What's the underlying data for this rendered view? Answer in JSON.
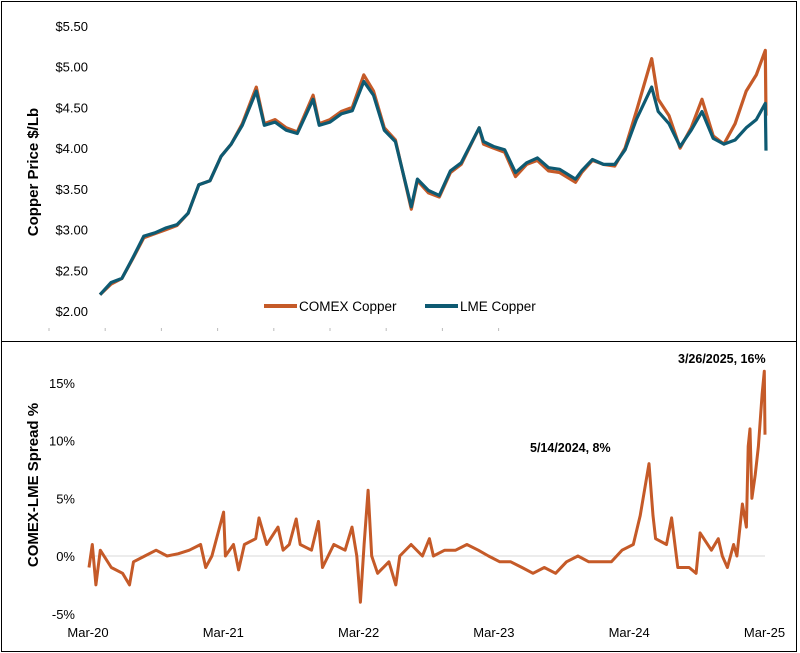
{
  "chart_data": [
    {
      "type": "line",
      "ylabel": "Copper Price $/Lb",
      "ylim": [
        2.0,
        5.5
      ],
      "yticks": [
        "$2.00",
        "$2.50",
        "$3.00",
        "$3.50",
        "$4.00",
        "$4.50",
        "$5.00",
        "$5.50"
      ],
      "ytick_values": [
        2.0,
        2.5,
        3.0,
        3.5,
        4.0,
        4.5,
        5.0,
        5.5
      ],
      "legend_position": "bottom-center",
      "x": [
        "2020-03-01",
        "2020-04-01",
        "2020-05-01",
        "2020-06-01",
        "2020-07-01",
        "2020-08-01",
        "2020-09-01",
        "2020-10-01",
        "2020-11-01",
        "2020-12-01",
        "2021-01-01",
        "2021-02-01",
        "2021-03-01",
        "2021-04-01",
        "2021-05-10",
        "2021-06-01",
        "2021-07-01",
        "2021-08-01",
        "2021-09-01",
        "2021-10-15",
        "2021-11-01",
        "2021-12-01",
        "2022-01-01",
        "2022-02-01",
        "2022-03-05",
        "2022-04-01",
        "2022-05-01",
        "2022-06-01",
        "2022-07-15",
        "2022-08-01",
        "2022-09-01",
        "2022-10-01",
        "2022-11-01",
        "2022-12-01",
        "2023-01-20",
        "2023-02-01",
        "2023-03-01",
        "2023-04-01",
        "2023-05-01",
        "2023-06-01",
        "2023-07-01",
        "2023-08-01",
        "2023-09-01",
        "2023-10-15",
        "2023-11-01",
        "2023-12-01",
        "2024-01-01",
        "2024-02-01",
        "2024-03-01",
        "2024-04-01",
        "2024-05-14",
        "2024-06-01",
        "2024-07-01",
        "2024-08-01",
        "2024-09-01",
        "2024-10-01",
        "2024-11-01",
        "2024-12-01",
        "2025-01-01",
        "2025-02-01",
        "2025-03-01",
        "2025-03-26",
        "2025-03-28"
      ],
      "series": [
        {
          "name": "COMEX Copper",
          "color": "#C55A28",
          "values": [
            2.2,
            2.33,
            2.4,
            2.65,
            2.9,
            2.95,
            3.0,
            3.05,
            3.2,
            3.55,
            3.6,
            3.9,
            4.05,
            4.3,
            4.75,
            4.3,
            4.35,
            4.25,
            4.2,
            4.65,
            4.3,
            4.35,
            4.45,
            4.5,
            4.9,
            4.7,
            4.25,
            4.1,
            3.25,
            3.6,
            3.45,
            3.4,
            3.7,
            3.8,
            4.25,
            4.05,
            4.0,
            3.95,
            3.65,
            3.8,
            3.85,
            3.72,
            3.7,
            3.58,
            3.7,
            3.85,
            3.8,
            3.78,
            4.0,
            4.45,
            5.1,
            4.6,
            4.4,
            4.0,
            4.25,
            4.6,
            4.15,
            4.05,
            4.3,
            4.7,
            4.9,
            5.2,
            4.4
          ]
        },
        {
          "name": "LME Copper",
          "color": "#0E5A72",
          "values": [
            2.2,
            2.35,
            2.4,
            2.66,
            2.92,
            2.96,
            3.02,
            3.06,
            3.2,
            3.55,
            3.6,
            3.9,
            4.05,
            4.28,
            4.7,
            4.28,
            4.32,
            4.22,
            4.18,
            4.6,
            4.28,
            4.32,
            4.42,
            4.46,
            4.82,
            4.65,
            4.22,
            4.08,
            3.28,
            3.62,
            3.48,
            3.42,
            3.72,
            3.82,
            4.25,
            4.08,
            4.02,
            3.98,
            3.7,
            3.82,
            3.88,
            3.76,
            3.74,
            3.62,
            3.72,
            3.86,
            3.8,
            3.8,
            3.98,
            4.35,
            4.75,
            4.45,
            4.3,
            4.02,
            4.22,
            4.45,
            4.12,
            4.05,
            4.1,
            4.25,
            4.35,
            4.55,
            3.97
          ]
        }
      ]
    },
    {
      "type": "line",
      "ylabel": "COMEX-LME Spread %",
      "ylim": [
        -5,
        16
      ],
      "yticks": [
        "-5%",
        "0%",
        "5%",
        "10%",
        "15%"
      ],
      "ytick_values": [
        -5,
        0,
        5,
        10,
        15
      ],
      "xticks": [
        "Mar-20",
        "Mar-21",
        "Mar-22",
        "Mar-23",
        "Mar-24",
        "Mar-25"
      ],
      "annotations": [
        {
          "text": "5/14/2024, 8%",
          "x": "2024-05-14",
          "y": 8
        },
        {
          "text": "3/26/2025, 16%",
          "x": "2025-03-26",
          "y": 16
        }
      ],
      "series": [
        {
          "color": "#C55A28",
          "x": [
            "2020-03-01",
            "2020-03-10",
            "2020-03-20",
            "2020-04-01",
            "2020-05-01",
            "2020-06-01",
            "2020-06-20",
            "2020-07-01",
            "2020-08-01",
            "2020-09-01",
            "2020-10-01",
            "2020-11-01",
            "2020-12-01",
            "2021-01-01",
            "2021-01-15",
            "2021-02-01",
            "2021-03-05",
            "2021-03-10",
            "2021-04-01",
            "2021-04-15",
            "2021-05-01",
            "2021-06-01",
            "2021-06-10",
            "2021-07-01",
            "2021-08-01",
            "2021-08-15",
            "2021-09-01",
            "2021-09-20",
            "2021-10-01",
            "2021-11-01",
            "2021-11-20",
            "2021-12-01",
            "2022-01-01",
            "2022-02-01",
            "2022-02-20",
            "2022-03-05",
            "2022-03-15",
            "2022-03-25",
            "2022-04-05",
            "2022-04-15",
            "2022-05-01",
            "2022-06-01",
            "2022-06-20",
            "2022-07-01",
            "2022-08-01",
            "2022-09-01",
            "2022-09-20",
            "2022-10-01",
            "2022-11-01",
            "2022-12-01",
            "2023-01-01",
            "2023-02-01",
            "2023-03-01",
            "2023-04-01",
            "2023-05-01",
            "2023-06-01",
            "2023-07-01",
            "2023-08-01",
            "2023-09-01",
            "2023-10-01",
            "2023-11-01",
            "2023-12-01",
            "2024-01-01",
            "2024-02-01",
            "2024-03-01",
            "2024-04-01",
            "2024-04-20",
            "2024-05-14",
            "2024-05-25",
            "2024-06-01",
            "2024-07-01",
            "2024-07-15",
            "2024-08-01",
            "2024-09-01",
            "2024-09-20",
            "2024-10-01",
            "2024-11-01",
            "2024-11-20",
            "2024-12-01",
            "2024-12-15",
            "2025-01-01",
            "2025-01-10",
            "2025-01-25",
            "2025-02-05",
            "2025-02-10",
            "2025-02-15",
            "2025-02-20",
            "2025-03-01",
            "2025-03-10",
            "2025-03-20",
            "2025-03-26",
            "2025-03-28"
          ],
          "values": [
            -1,
            1,
            -2.5,
            0.5,
            -1,
            -1.5,
            -2.5,
            -0.5,
            0,
            0.5,
            0,
            0.2,
            0.5,
            1,
            -1,
            0,
            3.8,
            0,
            1,
            -1.2,
            1,
            1.5,
            3.3,
            1,
            2.5,
            0.5,
            1,
            3.2,
            1,
            0.5,
            3,
            -1,
            1,
            0.5,
            2.5,
            0,
            -4,
            1,
            5.7,
            0,
            -1.5,
            -0.5,
            -2.5,
            0,
            1,
            0,
            1.5,
            0,
            0.5,
            0.5,
            1,
            0.5,
            0,
            -0.5,
            -0.5,
            -1,
            -1.5,
            -1,
            -1.5,
            -0.5,
            0,
            -0.5,
            -0.5,
            -0.5,
            0.5,
            1,
            3.5,
            8,
            3.5,
            1.5,
            1,
            3.3,
            -1,
            -1,
            -1.5,
            2,
            0.5,
            1.5,
            0,
            -1,
            1,
            0,
            4.5,
            2.5,
            9.5,
            11,
            5,
            7,
            9.5,
            14,
            16,
            10.5
          ]
        }
      ]
    }
  ]
}
